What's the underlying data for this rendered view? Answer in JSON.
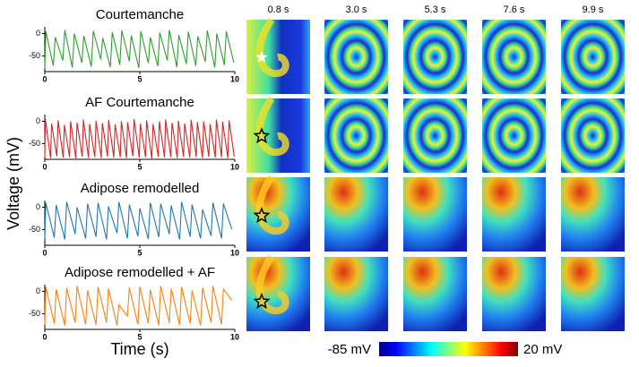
{
  "chart_data": [
    {
      "type": "line",
      "title": "Courtemanche",
      "x": [
        0,
        0.05,
        0.45,
        0.55,
        0.95,
        1.05,
        1.45,
        1.55,
        1.95,
        2.05,
        2.45,
        2.55,
        2.95,
        3.05,
        3.45,
        3.55,
        3.95,
        4.05,
        4.45,
        4.55,
        4.95,
        5.05,
        5.45,
        5.55,
        5.95,
        6.05,
        6.45,
        6.55,
        6.95,
        7.05,
        7.45,
        7.55,
        7.95,
        8.05,
        8.45,
        8.55,
        8.95,
        9.05,
        9.45,
        9.55,
        9.95
      ],
      "series": [
        {
          "color": "#2ca02c",
          "values": [
            -78,
            5,
            -72,
            -8,
            -60,
            8,
            -76,
            0,
            -65,
            -5,
            -74,
            6,
            -58,
            -10,
            -75,
            3,
            -70,
            7,
            -62,
            -4,
            -77,
            5,
            -66,
            -8,
            -73,
            2,
            -60,
            8,
            -75,
            -3,
            -68,
            4,
            -72,
            -6,
            -63,
            7,
            -76,
            0,
            -70,
            5,
            -65
          ]
        }
      ],
      "xlim": [
        0,
        10
      ],
      "xticks": [
        0,
        5,
        10
      ],
      "ylim": [
        -85,
        15
      ],
      "yticks": [
        0,
        -50
      ]
    },
    {
      "type": "line",
      "title": "AF Courtemanche",
      "x": [
        0,
        0.03,
        0.3,
        0.36,
        0.63,
        0.7,
        0.97,
        1.03,
        1.3,
        1.36,
        1.63,
        1.7,
        1.97,
        2.03,
        2.3,
        2.36,
        2.63,
        2.7,
        2.97,
        3.03,
        3.3,
        3.36,
        3.63,
        3.7,
        3.97,
        4.03,
        4.3,
        4.36,
        4.63,
        4.7,
        4.97,
        5.03,
        5.3,
        5.36,
        5.63,
        5.7,
        5.97,
        6.03,
        6.3,
        6.36,
        6.63,
        6.7,
        6.97,
        7.03,
        7.3,
        7.36,
        7.63,
        7.7,
        7.97,
        8.03,
        8.3,
        8.36,
        8.63,
        8.7,
        8.97,
        9.03,
        9.3,
        9.36,
        9.63,
        9.7,
        9.97
      ],
      "series": [
        {
          "color": "#d62728",
          "values": [
            -80,
            5,
            -82,
            -5,
            -78,
            2,
            -81,
            -8,
            -80,
            0,
            -83,
            -3,
            -79,
            4,
            -82,
            -6,
            -80,
            1,
            -82,
            -4,
            -79,
            3,
            -81,
            -7,
            -80,
            0,
            -82,
            -2,
            -78,
            5,
            -81,
            -5,
            -80,
            2,
            -83,
            -6,
            -79,
            0,
            -81,
            4,
            -80,
            -3,
            -82,
            1,
            -79,
            -5,
            -81,
            3,
            -80,
            -2,
            -82,
            0,
            -79,
            -6,
            -81,
            4,
            -80,
            -1,
            -82,
            2,
            -79
          ]
        }
      ],
      "xlim": [
        0,
        10
      ],
      "xticks": [
        0,
        5,
        10
      ],
      "ylim": [
        -85,
        15
      ],
      "yticks": [
        0,
        -50
      ]
    },
    {
      "type": "line",
      "title": "Adipose remodelled",
      "x": [
        0,
        0.05,
        0.5,
        0.6,
        1.05,
        1.15,
        1.6,
        1.7,
        2.15,
        2.25,
        2.7,
        2.8,
        3.25,
        3.35,
        3.8,
        3.9,
        4.35,
        4.45,
        4.9,
        5.0,
        5.45,
        5.55,
        6.0,
        6.1,
        6.55,
        6.65,
        7.1,
        7.2,
        7.65,
        7.75,
        8.2,
        8.3,
        8.75,
        8.85,
        9.3,
        9.4,
        9.85
      ],
      "series": [
        {
          "color": "#1f77b4",
          "values": [
            -70,
            10,
            -68,
            5,
            -72,
            12,
            -60,
            0,
            -70,
            8,
            -66,
            10,
            -72,
            2,
            -58,
            12,
            -70,
            6,
            -65,
            -2,
            -71,
            10,
            -67,
            8,
            -60,
            4,
            -72,
            12,
            -66,
            6,
            -70,
            -5,
            -64,
            10,
            -70,
            8,
            -50
          ]
        }
      ],
      "xlim": [
        0,
        10
      ],
      "xticks": [
        0,
        5,
        10
      ],
      "ylim": [
        -85,
        15
      ],
      "yticks": [
        0,
        -50
      ]
    },
    {
      "type": "line",
      "title": "Adipose remodelled + AF",
      "x": [
        0,
        0.05,
        0.5,
        0.6,
        1.05,
        1.15,
        1.6,
        1.7,
        2.15,
        2.25,
        2.7,
        2.8,
        3.25,
        3.35,
        3.8,
        3.9,
        4.35,
        4.45,
        4.9,
        5.0,
        5.45,
        5.55,
        6.0,
        6.1,
        6.55,
        6.65,
        7.1,
        7.2,
        7.65,
        7.75,
        8.2,
        8.3,
        8.75,
        8.85,
        9.3,
        9.4,
        9.85
      ],
      "series": [
        {
          "color": "#ff7f0e",
          "values": [
            -75,
            10,
            -72,
            5,
            -76,
            8,
            -70,
            12,
            -74,
            2,
            -75,
            10,
            -70,
            6,
            -76,
            -30,
            -55,
            8,
            -74,
            10,
            -72,
            4,
            -76,
            12,
            -70,
            6,
            -75,
            10,
            -72,
            2,
            -76,
            8,
            -70,
            12,
            -74,
            5,
            -20
          ]
        }
      ],
      "xlim": [
        0,
        10
      ],
      "xticks": [
        0,
        5,
        10
      ],
      "ylim": [
        -85,
        15
      ],
      "yticks": [
        0,
        -50
      ]
    }
  ],
  "y_label": "Voltage (mV)",
  "x_label": "Time (s)",
  "column_labels": [
    "0.8 s",
    "3.0 s",
    "5.3 s",
    "7.6 s",
    "9.9 s"
  ],
  "colorbar": {
    "min_label": "-85 mV",
    "max_label": "20 mV"
  }
}
